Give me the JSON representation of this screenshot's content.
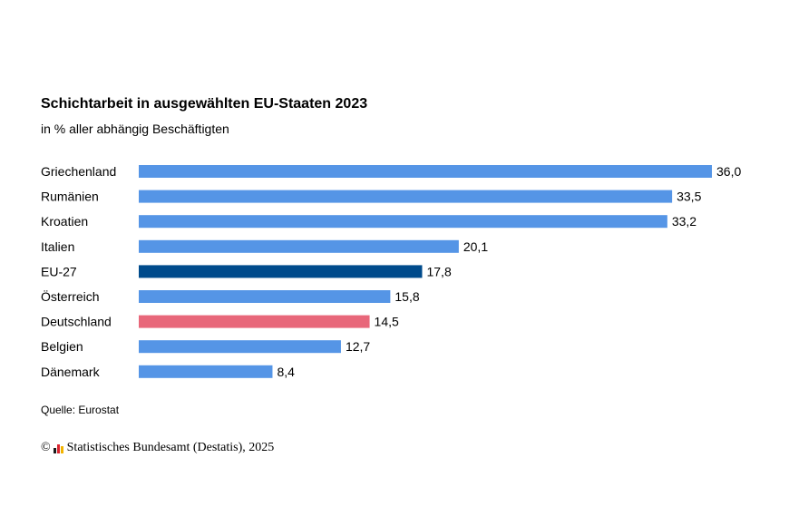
{
  "chart_data": {
    "type": "bar",
    "orientation": "horizontal",
    "title": "Schichtarbeit in ausgewählten EU-Staaten 2023",
    "subtitle": "in % aller abhängig Beschäftigten",
    "categories": [
      "Griechenland",
      "Rumänien",
      "Kroatien",
      "Italien",
      "EU-27",
      "Österreich",
      "Deutschland",
      "Belgien",
      "Dänemark"
    ],
    "values": [
      36.0,
      33.5,
      33.2,
      20.1,
      17.8,
      15.8,
      14.5,
      12.7,
      8.4
    ],
    "value_labels": [
      "36,0",
      "33,5",
      "33,2",
      "20,1",
      "17,8",
      "15,8",
      "14,5",
      "12,7",
      "8,4"
    ],
    "colors": [
      "#5595e6",
      "#5595e6",
      "#5595e6",
      "#5595e6",
      "#004b8c",
      "#5595e6",
      "#e8677a",
      "#5595e6",
      "#5595e6"
    ],
    "xlim": [
      0,
      36.0
    ],
    "grid": false,
    "xlabel": "",
    "ylabel": ""
  },
  "source": "Quelle: Eurostat",
  "footer": {
    "copyright_symbol": "©",
    "text": "Statistisches Bundesamt (Destatis), 2025"
  }
}
